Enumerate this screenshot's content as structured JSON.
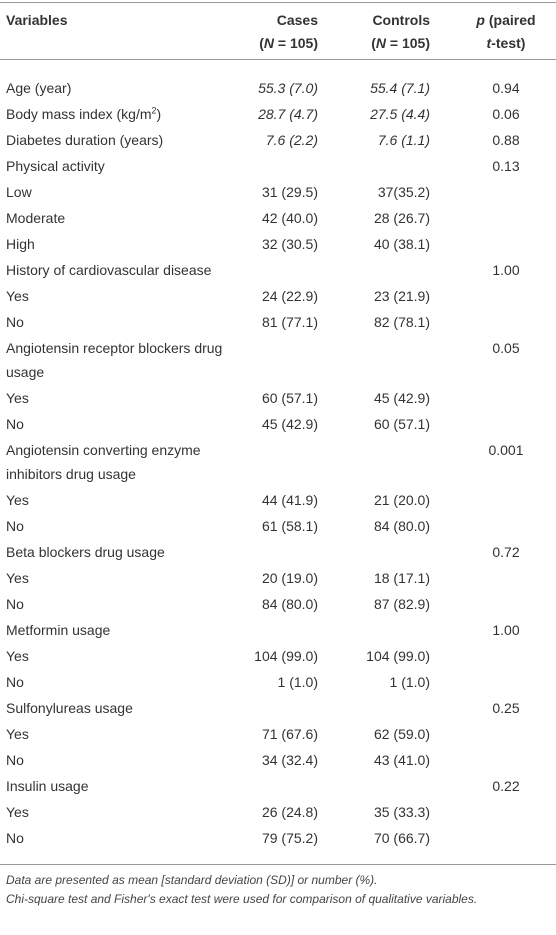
{
  "header": {
    "variables": "Variables",
    "cases": [
      "Cases",
      "(",
      "N",
      " = 105)"
    ],
    "controls": [
      "Controls",
      "(",
      "N",
      " = 105)"
    ],
    "p": [
      "p",
      " (paired",
      "t",
      "-test)"
    ]
  },
  "rows": [
    {
      "label": "Age (year)",
      "cases": "55.3 (7.0)",
      "controls": "55.4 (7.1)",
      "p": "0.94",
      "italic": true
    },
    {
      "label": [
        "Body mass index (kg/m",
        "2",
        ")"
      ],
      "cases": "28.7 (4.7)",
      "controls": "27.5 (4.4)",
      "p": "0.06",
      "italic": true
    },
    {
      "label": "Diabetes duration (years)",
      "cases": "7.6 (2.2)",
      "controls": "7.6 (1.1)",
      "p": "0.88",
      "italic": true
    },
    {
      "label": "Physical activity",
      "p": "0.13"
    },
    {
      "label": "Low",
      "cases": "31 (29.5)",
      "controls": "37(35.2)"
    },
    {
      "label": "Moderate",
      "cases": "42 (40.0)",
      "controls": "28 (26.7)"
    },
    {
      "label": "High",
      "cases": "32 (30.5)",
      "controls": "40 (38.1)"
    },
    {
      "label": "History of cardiovascular disease",
      "p": "1.00"
    },
    {
      "label": "Yes",
      "cases": "24 (22.9)",
      "controls": "23 (21.9)"
    },
    {
      "label": "No",
      "cases": "81 (77.1)",
      "controls": "82 (78.1)"
    },
    {
      "label": "Angiotensin receptor blockers drug usage",
      "p": "0.05"
    },
    {
      "label": "Yes",
      "cases": "60 (57.1)",
      "controls": "45 (42.9)"
    },
    {
      "label": "No",
      "cases": "45 (42.9)",
      "controls": "60 (57.1)"
    },
    {
      "label": "Angiotensin converting enzyme inhibitors drug usage",
      "p": "0.001"
    },
    {
      "label": "Yes",
      "cases": "44 (41.9)",
      "controls": "21 (20.0)"
    },
    {
      "label": "No",
      "cases": "61 (58.1)",
      "controls": "84 (80.0)"
    },
    {
      "label": "Beta blockers drug usage",
      "p": "0.72"
    },
    {
      "label": "Yes",
      "cases": "20 (19.0)",
      "controls": "18 (17.1)"
    },
    {
      "label": "No",
      "cases": "84 (80.0)",
      "controls": "87 (82.9)"
    },
    {
      "label": "Metformin usage",
      "p": "1.00"
    },
    {
      "label": "Yes",
      "cases": "104 (99.0)",
      "controls": "104 (99.0)"
    },
    {
      "label": "No",
      "cases": "1 (1.0)",
      "controls": "1 (1.0)"
    },
    {
      "label": "Sulfonylureas usage",
      "p": "0.25"
    },
    {
      "label": "Yes",
      "cases": "71 (67.6)",
      "controls": "62 (59.0)"
    },
    {
      "label": "No",
      "cases": "34 (32.4)",
      "controls": "43 (41.0)"
    },
    {
      "label": "Insulin usage",
      "p": "0.22"
    },
    {
      "label": "Yes",
      "cases": "26 (24.8)",
      "controls": "35 (33.3)"
    },
    {
      "label": "No",
      "cases": "79 (75.2)",
      "controls": "70 (66.7)"
    }
  ],
  "notes": [
    "Data are presented as mean [standard deviation (SD)] or number (%).",
    "Chi-square test and Fisher's exact test were used for comparison of qualitative variables."
  ]
}
